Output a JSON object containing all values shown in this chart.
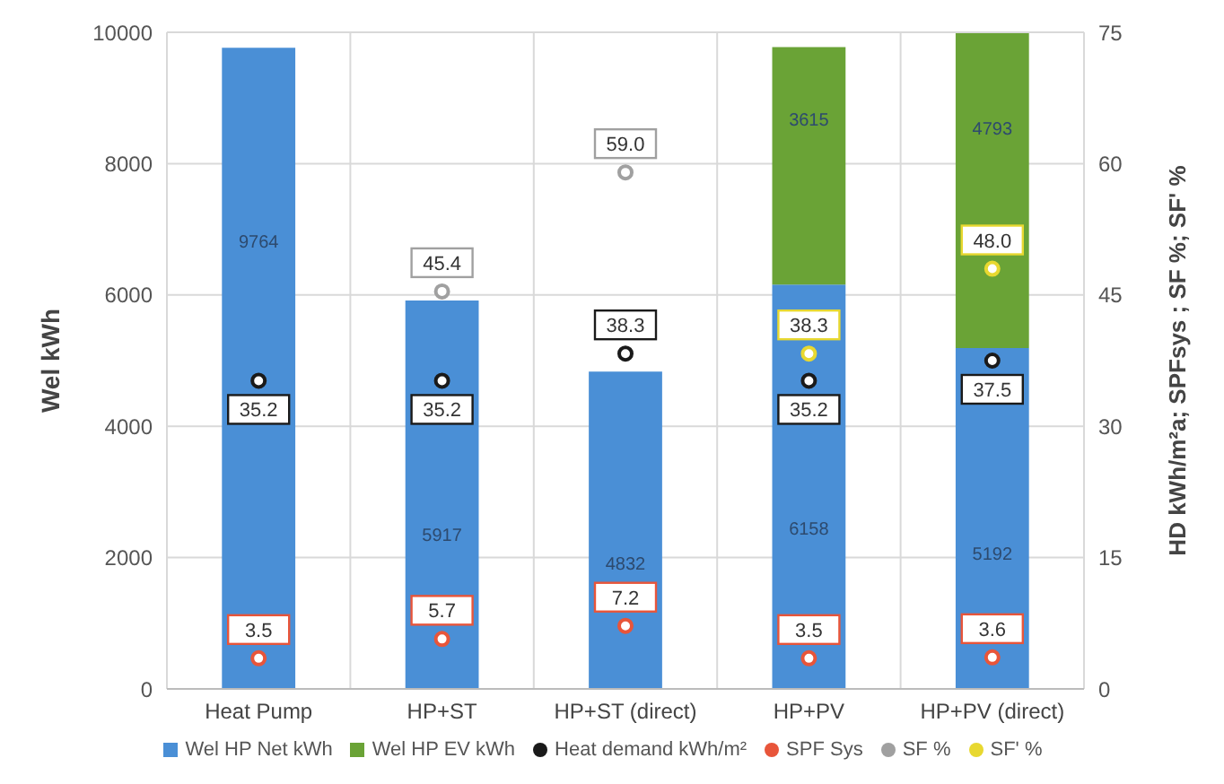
{
  "chart_data": {
    "type": "bar",
    "stacked": true,
    "categories": [
      "Heat Pump",
      "HP+ST",
      "HP+ST (direct)",
      "HP+PV",
      "HP+PV (direct)"
    ],
    "ylabel": "Wel kWh",
    "y2label": "HD kWh/m²a; SPFsys ; SF %; SF' %",
    "ylim": [
      0,
      10000
    ],
    "yticks": [
      0,
      2000,
      4000,
      6000,
      8000,
      10000
    ],
    "y2lim": [
      0,
      75
    ],
    "y2ticks": [
      0,
      15,
      30,
      45,
      60,
      75
    ],
    "grid": true,
    "legend": "bottom",
    "data_labels": true,
    "marker": "circle",
    "series": [
      {
        "name": "Wel HP Net kWh",
        "color": "#4a8fd6",
        "values": [
          9764,
          5917,
          4832,
          6158,
          5192
        ]
      },
      {
        "name": "Wel HP EV kWh",
        "color": "#6aa336",
        "values": [
          null,
          null,
          null,
          3615,
          4793
        ]
      },
      {
        "name": "Heat demand kWh/m²",
        "type": "scatter",
        "axis": "y2",
        "color": "#1a1a1a",
        "values": [
          35.2,
          35.2,
          38.3,
          35.2,
          37.5
        ]
      },
      {
        "name": "SPF Sys",
        "type": "scatter",
        "axis": "y2",
        "color": "#e8553a",
        "values": [
          3.5,
          5.7,
          7.2,
          3.5,
          3.6
        ]
      },
      {
        "name": "SF %",
        "type": "scatter",
        "axis": "y2",
        "color": "#a0a0a0",
        "values": [
          null,
          45.4,
          59.0,
          null,
          null
        ],
        "value_labels": [
          null,
          "45.4",
          "59.0",
          null,
          null
        ]
      },
      {
        "name": "SF' %",
        "type": "scatter",
        "axis": "y2",
        "color": "#e8d830",
        "values": [
          null,
          null,
          null,
          38.3,
          48.0
        ],
        "value_labels": [
          null,
          null,
          null,
          "38.3",
          "48.0"
        ]
      }
    ]
  }
}
